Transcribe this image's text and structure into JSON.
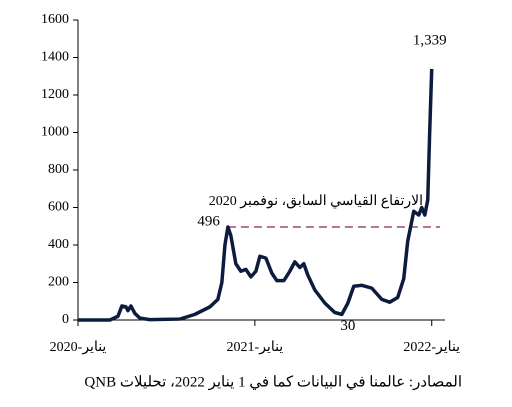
{
  "chart_data": {
    "type": "line",
    "x": [
      0,
      2.17,
      2.71,
      2.98,
      3.25,
      3.39,
      3.59,
      3.86,
      4.2,
      4.88,
      6.92,
      7.93,
      8.95,
      9.49,
      9.76,
      9.97,
      10.17,
      10.37,
      10.71,
      11.05,
      11.39,
      11.73,
      12.07,
      12.34,
      12.75,
      13.15,
      13.49,
      13.97,
      14.37,
      14.71,
      15.05,
      15.32,
      15.59,
      16.07,
      16.75,
      17.42,
      17.9,
      18.31,
      18.71,
      19.25,
      19.93,
      20.61,
      21.15,
      21.69,
      22.1,
      22.37,
      22.78,
      23.12,
      23.32,
      23.53,
      23.73,
      23.86,
      24
    ],
    "series": [
      {
        "color": "#0d1b3e",
        "values": [
          0,
          0,
          20,
          75,
          70,
          50,
          75,
          35,
          10,
          2,
          5,
          30,
          70,
          110,
          200,
          400,
          496,
          450,
          300,
          260,
          270,
          230,
          260,
          340,
          330,
          250,
          210,
          210,
          260,
          310,
          280,
          300,
          240,
          160,
          90,
          40,
          30,
          90,
          180,
          185,
          170,
          110,
          95,
          120,
          220,
          420,
          580,
          560,
          600,
          560,
          640,
          1000,
          1339
        ]
      }
    ],
    "xlim": [
      0,
      24.9
    ],
    "xticks": [
      {
        "value": 0,
        "label": "يناير-2020"
      },
      {
        "value": 12,
        "label": "يناير-2021"
      },
      {
        "value": 24,
        "label": "يناير-2022"
      }
    ],
    "ylim": [
      0,
      1600
    ],
    "yticks": [
      0,
      200,
      400,
      600,
      800,
      1000,
      1200,
      1400,
      1600
    ],
    "point_labels": [
      {
        "x": 24,
        "value": 1339,
        "label": "1,339"
      },
      {
        "x": 10.17,
        "value": 496
      },
      {
        "x": 17.9,
        "value": 30
      }
    ],
    "reference_line": {
      "value": 496,
      "label": "الارتفاع القياسي السابق، نوفمبر 2020",
      "color": "#a0457a"
    },
    "source": "المصادر: عالمنا في البيانات كما في 1 يناير 2022، تحليلات QNB"
  }
}
